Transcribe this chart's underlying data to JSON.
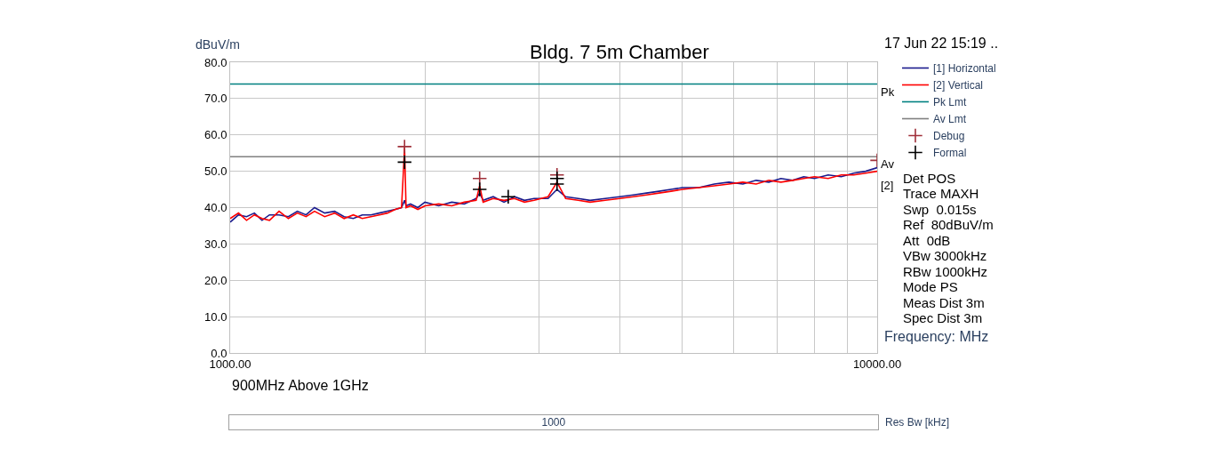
{
  "chart_data": {
    "type": "line",
    "title": "Bldg. 7 5m Chamber",
    "ylabel": "dBuV/m",
    "xlabel": "Frequency: MHz",
    "log": "x",
    "grid": true,
    "legend": "right",
    "line_style": "solid",
    "marker": "none",
    "xlim": [
      1000,
      10000
    ],
    "xticks": [
      {
        "value": 1000,
        "label": "1000.00"
      },
      {
        "value": 2000,
        "label": null
      },
      {
        "value": 3000,
        "label": null
      },
      {
        "value": 4000,
        "label": null
      },
      {
        "value": 5000,
        "label": null
      },
      {
        "value": 6000,
        "label": null
      },
      {
        "value": 7000,
        "label": null
      },
      {
        "value": 8000,
        "label": null
      },
      {
        "value": 9000,
        "label": null
      },
      {
        "value": 10000,
        "label": "10000.00"
      }
    ],
    "ylim": [
      0,
      80
    ],
    "yticks": [
      {
        "value": 0,
        "label": "0.0"
      },
      {
        "value": 10,
        "label": "10.0"
      },
      {
        "value": 20,
        "label": "20.0"
      },
      {
        "value": 30,
        "label": "30.0"
      },
      {
        "value": 40,
        "label": "40.0"
      },
      {
        "value": 50,
        "label": "50.0"
      },
      {
        "value": 60,
        "label": "60.0"
      },
      {
        "value": 70,
        "label": "70.0"
      },
      {
        "value": 80,
        "label": "80.0"
      }
    ],
    "series": [
      {
        "name": "[1] Horizontal",
        "color": "#1a1a8c",
        "x": [
          1000,
          1030,
          1060,
          1090,
          1120,
          1150,
          1190,
          1230,
          1270,
          1310,
          1350,
          1400,
          1450,
          1500,
          1550,
          1600,
          1650,
          1700,
          1750,
          1800,
          1840,
          1850,
          1860,
          1870,
          1900,
          1950,
          2000,
          2100,
          2200,
          2300,
          2400,
          2430,
          2460,
          2550,
          2650,
          2750,
          2850,
          2950,
          3100,
          3200,
          3300,
          3450,
          3600,
          3800,
          4000,
          4200,
          4400,
          4600,
          4800,
          5000,
          5300,
          5600,
          5900,
          6200,
          6500,
          6800,
          7100,
          7400,
          7700,
          8000,
          8400,
          8800,
          9200,
          9600,
          10000
        ],
        "values": [
          36,
          38,
          37.5,
          38.5,
          36.5,
          38,
          38,
          37.5,
          39,
          38,
          40,
          38.5,
          39,
          37.5,
          37,
          38,
          38,
          38.5,
          39,
          39.5,
          40,
          41,
          42,
          40.5,
          41,
          40,
          41.5,
          40.5,
          41.5,
          41,
          42.5,
          44,
          42,
          43,
          41.5,
          43,
          42,
          42.5,
          42.5,
          45,
          43,
          42.5,
          42,
          42.5,
          43,
          43.5,
          44,
          44.5,
          45,
          45.5,
          45.5,
          46.5,
          47,
          46.5,
          47.5,
          47,
          48,
          47.5,
          48.5,
          48,
          49,
          48.5,
          49.5,
          50,
          51
        ]
      },
      {
        "name": "[2] Vertical",
        "color": "#ff0000",
        "x": [
          1000,
          1030,
          1060,
          1090,
          1120,
          1150,
          1190,
          1230,
          1270,
          1310,
          1350,
          1400,
          1450,
          1500,
          1550,
          1600,
          1650,
          1700,
          1750,
          1800,
          1840,
          1850,
          1860,
          1870,
          1900,
          1950,
          2000,
          2100,
          2200,
          2300,
          2400,
          2430,
          2460,
          2550,
          2650,
          2750,
          2850,
          2950,
          3100,
          3200,
          3300,
          3450,
          3600,
          3800,
          4000,
          4200,
          4400,
          4600,
          4800,
          5000,
          5300,
          5600,
          5900,
          6200,
          6500,
          6800,
          7100,
          7400,
          7700,
          8000,
          8400,
          8800,
          9200,
          9600,
          10000
        ],
        "values": [
          37,
          38.5,
          36.5,
          38,
          37,
          36.5,
          39,
          37,
          38.5,
          37.5,
          39,
          37.5,
          38.5,
          37,
          38,
          37,
          37.5,
          38,
          38.5,
          39.5,
          40,
          48,
          56.5,
          40,
          40.5,
          39.5,
          40.5,
          41,
          40.5,
          41.5,
          42,
          46,
          41.5,
          42.5,
          42,
          42.5,
          41.5,
          42,
          43,
          47,
          42.5,
          42,
          41.5,
          42,
          42.5,
          43,
          43.5,
          44,
          44.5,
          45,
          45.5,
          46,
          46.5,
          47,
          46.5,
          47.5,
          47,
          47.5,
          48,
          48.5,
          48,
          49,
          49,
          49.5,
          50
        ]
      },
      {
        "name": "Pk Lmt",
        "color": "#008080",
        "x": [
          1000,
          10000
        ],
        "values": [
          74,
          74
        ]
      },
      {
        "name": "Av Lmt",
        "color": "#808080",
        "x": [
          1000,
          10000
        ],
        "values": [
          54,
          54
        ]
      },
      {
        "name": "Debug",
        "type": "scatter",
        "marker": "cross",
        "color": "#a0303a",
        "x": [
          1860,
          2430,
          3200,
          10000
        ],
        "values": [
          56.8,
          48,
          49,
          53
        ]
      },
      {
        "name": "Formal",
        "type": "scatter",
        "marker": "cross",
        "color": "#000000",
        "x": [
          1860,
          2430,
          2690,
          3200,
          3200
        ],
        "values": [
          52.5,
          45,
          43,
          48,
          46.5
        ]
      }
    ],
    "annotations": [
      "17 Jun 22 15:19 ..",
      "Det POS",
      "Trace MAXH",
      "Swp  0.015s",
      "Ref  80dBuV/m",
      "Att  0dB",
      "VBw 3000kHz",
      "RBw 1000kHz",
      "Mode PS",
      "Meas Dist 3m",
      "Spec Dist 3m",
      "900MHz Above 1GHz",
      "1000",
      "Res Bw [kHz]",
      "Pk",
      "Av",
      "[2]"
    ]
  }
}
